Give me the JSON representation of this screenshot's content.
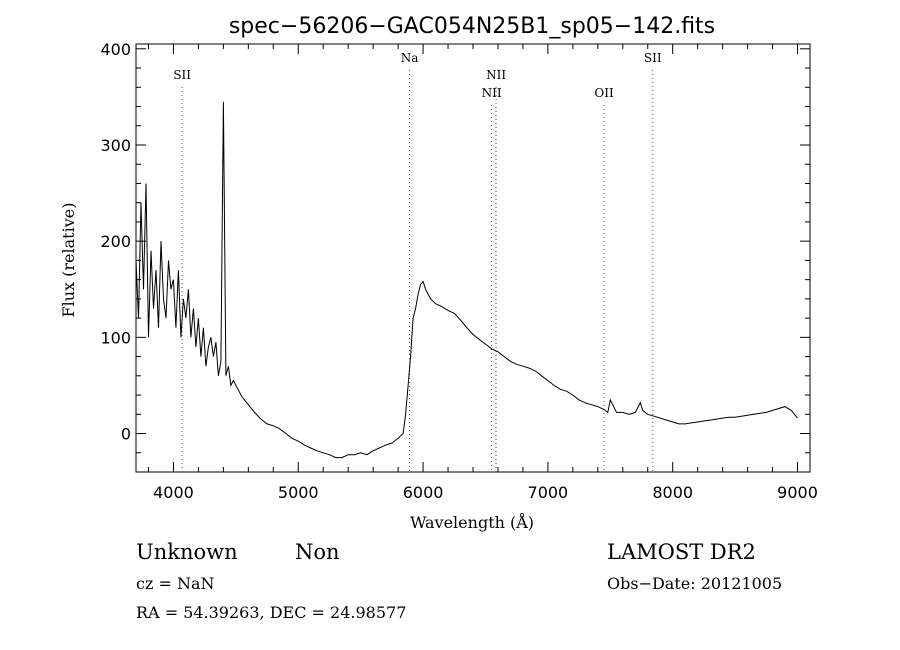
{
  "chart_data": {
    "type": "line",
    "title": "spec−56206−GAC054N25B1_sp05−142.fits",
    "xlabel": "Wavelength (Å)",
    "ylabel": "Flux (relative)",
    "xlim": [
      3700,
      9100
    ],
    "ylim": [
      -40,
      405
    ],
    "xticks": [
      4000,
      5000,
      6000,
      7000,
      8000,
      9000
    ],
    "yticks": [
      0,
      100,
      200,
      300,
      400
    ],
    "grid": false,
    "series": [
      {
        "x": [
          3700,
          3720,
          3740,
          3760,
          3780,
          3800,
          3820,
          3840,
          3860,
          3880,
          3900,
          3920,
          3940,
          3960,
          3980,
          4000,
          4020,
          4040,
          4060,
          4080,
          4100,
          4120,
          4140,
          4160,
          4180,
          4200,
          4220,
          4240,
          4260,
          4280,
          4300,
          4320,
          4340,
          4360,
          4380,
          4400,
          4420,
          4440,
          4460,
          4480,
          4500,
          4550,
          4600,
          4650,
          4700,
          4750,
          4800,
          4850,
          4900,
          4950,
          5000,
          5050,
          5100,
          5150,
          5200,
          5250,
          5300,
          5350,
          5400,
          5450,
          5500,
          5550,
          5600,
          5650,
          5700,
          5750,
          5800,
          5840,
          5860,
          5880,
          5900,
          5920,
          5940,
          5960,
          5980,
          6000,
          6020,
          6040,
          6060,
          6100,
          6150,
          6200,
          6250,
          6300,
          6350,
          6400,
          6450,
          6500,
          6550,
          6600,
          6650,
          6700,
          6750,
          6800,
          6850,
          6900,
          6950,
          7000,
          7050,
          7100,
          7150,
          7200,
          7250,
          7300,
          7350,
          7400,
          7450,
          7480,
          7500,
          7550,
          7600,
          7650,
          7700,
          7740,
          7760,
          7800,
          7850,
          7900,
          7950,
          8000,
          8050,
          8100,
          8150,
          8200,
          8250,
          8300,
          8350,
          8400,
          8450,
          8500,
          8550,
          8600,
          8650,
          8700,
          8750,
          8800,
          8850,
          8900,
          8950,
          9000
        ],
        "y": [
          180,
          120,
          240,
          150,
          260,
          100,
          190,
          130,
          170,
          110,
          200,
          140,
          120,
          180,
          150,
          160,
          110,
          170,
          100,
          140,
          120,
          150,
          100,
          130,
          90,
          120,
          80,
          110,
          70,
          90,
          100,
          80,
          95,
          60,
          75,
          345,
          60,
          70,
          50,
          55,
          50,
          38,
          30,
          22,
          15,
          10,
          8,
          5,
          0,
          -5,
          -8,
          -12,
          -15,
          -18,
          -20,
          -22,
          -25,
          -25,
          -22,
          -22,
          -20,
          -22,
          -18,
          -15,
          -12,
          -10,
          -5,
          0,
          20,
          50,
          80,
          120,
          130,
          145,
          155,
          158,
          150,
          145,
          140,
          135,
          132,
          128,
          125,
          118,
          110,
          103,
          98,
          93,
          88,
          85,
          80,
          75,
          72,
          70,
          68,
          65,
          60,
          55,
          50,
          46,
          44,
          40,
          35,
          32,
          30,
          28,
          25,
          22,
          35,
          22,
          22,
          20,
          22,
          32,
          24,
          20,
          18,
          16,
          14,
          12,
          10,
          10,
          11,
          12,
          13,
          14,
          15,
          16,
          17,
          17,
          18,
          19,
          20,
          21,
          22,
          24,
          26,
          28,
          24,
          16
        ]
      }
    ],
    "line_labels": [
      {
        "label": "SII",
        "x": 4070,
        "row": 1
      },
      {
        "label": "Na",
        "x": 5892,
        "row": 0
      },
      {
        "label": "NII",
        "x": 6549,
        "row": 2
      },
      {
        "label": "NII",
        "x": 6585,
        "row": 1
      },
      {
        "label": "OII",
        "x": 7450,
        "row": 2
      },
      {
        "label": "SII",
        "x": 7840,
        "row": 0
      }
    ]
  },
  "info": {
    "class_text": "Unknown",
    "subclass_text": "Non",
    "survey_text": "LAMOST DR2",
    "cz_text": "cz = NaN",
    "obsdate_text": "Obs−Date: 20121005",
    "radec_text": "RA =  54.39263, DEC =  24.98577"
  }
}
